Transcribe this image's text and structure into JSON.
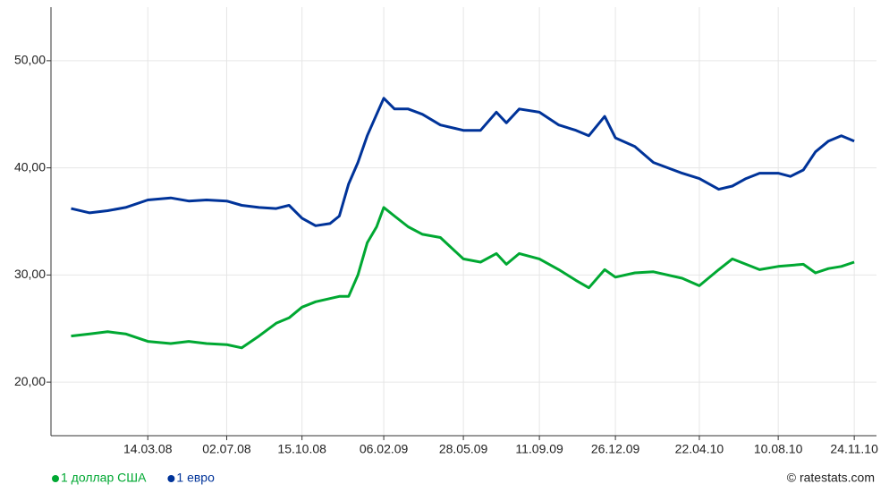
{
  "chart_data": {
    "type": "line",
    "x": [
      "2007-11-28",
      "2007-12-24",
      "2008-01-18",
      "2008-02-12",
      "2008-03-14",
      "2008-04-15",
      "2008-05-10",
      "2008-06-04",
      "2008-07-02",
      "2008-07-23",
      "2008-08-16",
      "2008-09-09",
      "2008-09-27",
      "2008-10-15",
      "2008-11-03",
      "2008-11-23",
      "2008-12-06",
      "2008-12-19",
      "2009-01-01",
      "2009-01-14",
      "2009-01-27",
      "2009-02-06",
      "2009-02-21",
      "2009-03-12",
      "2009-04-01",
      "2009-04-26",
      "2009-05-28",
      "2009-06-21",
      "2009-07-13",
      "2009-07-27",
      "2009-08-14",
      "2009-09-11",
      "2009-10-08",
      "2009-11-01",
      "2009-11-19",
      "2009-12-11",
      "2009-12-26",
      "2010-01-22",
      "2010-02-17",
      "2010-03-29",
      "2010-04-22",
      "2010-05-19",
      "2010-06-07",
      "2010-06-26",
      "2010-07-15",
      "2010-08-10",
      "2010-08-27",
      "2010-09-14",
      "2010-10-01",
      "2010-10-19",
      "2010-11-06",
      "2010-11-24"
    ],
    "series": [
      {
        "name": "1 доллар США",
        "color": "#00a832",
        "values": [
          24.3,
          24.5,
          24.7,
          24.5,
          23.8,
          23.6,
          23.8,
          23.6,
          23.5,
          23.2,
          24.3,
          25.5,
          26.0,
          27.0,
          27.5,
          27.8,
          28.0,
          28.0,
          30.0,
          33.0,
          34.5,
          36.3,
          35.5,
          34.5,
          33.8,
          33.5,
          31.5,
          31.2,
          32.0,
          31.0,
          32.0,
          31.5,
          30.5,
          29.5,
          28.8,
          30.5,
          29.8,
          30.2,
          30.3,
          29.7,
          29.0,
          30.5,
          31.5,
          31.0,
          30.5,
          30.8,
          30.9,
          31.0,
          30.2,
          30.6,
          30.8,
          31.2
        ]
      },
      {
        "name": "1 евро",
        "color": "#003399",
        "values": [
          36.2,
          35.8,
          36.0,
          36.3,
          37.0,
          37.2,
          36.9,
          37.0,
          36.9,
          36.5,
          36.3,
          36.2,
          36.5,
          35.3,
          34.6,
          34.8,
          35.5,
          38.5,
          40.5,
          43.0,
          45.0,
          46.5,
          45.5,
          45.5,
          45.0,
          44.0,
          43.5,
          43.5,
          45.2,
          44.2,
          45.5,
          45.2,
          44.0,
          43.5,
          43.0,
          44.8,
          42.8,
          42.0,
          40.5,
          39.5,
          39.0,
          38.0,
          38.3,
          39.0,
          39.5,
          39.5,
          39.2,
          39.8,
          41.5,
          42.5,
          43.0,
          42.5
        ]
      }
    ],
    "xlim": [
      "2007-10-31",
      "2010-12-25"
    ],
    "xticks": [
      {
        "value": "2008-03-14",
        "label": "14.03.08"
      },
      {
        "value": "2008-07-02",
        "label": "02.07.08"
      },
      {
        "value": "2008-10-15",
        "label": "15.10.08"
      },
      {
        "value": "2009-02-06",
        "label": "06.02.09"
      },
      {
        "value": "2009-05-28",
        "label": "28.05.09"
      },
      {
        "value": "2009-09-11",
        "label": "11.09.09"
      },
      {
        "value": "2009-12-26",
        "label": "26.12.09"
      },
      {
        "value": "2010-04-22",
        "label": "22.04.10"
      },
      {
        "value": "2010-08-10",
        "label": "10.08.10"
      },
      {
        "value": "2010-11-24",
        "label": "24.11.10"
      }
    ],
    "ylim": [
      15,
      55
    ],
    "yticks": [
      {
        "value": 20,
        "label": "20,00"
      },
      {
        "value": 30,
        "label": "30,00"
      },
      {
        "value": 40,
        "label": "40,00"
      },
      {
        "value": 50,
        "label": "50,00"
      }
    ],
    "grid": true,
    "legend": "bottom",
    "source": "© ratestats.com"
  }
}
